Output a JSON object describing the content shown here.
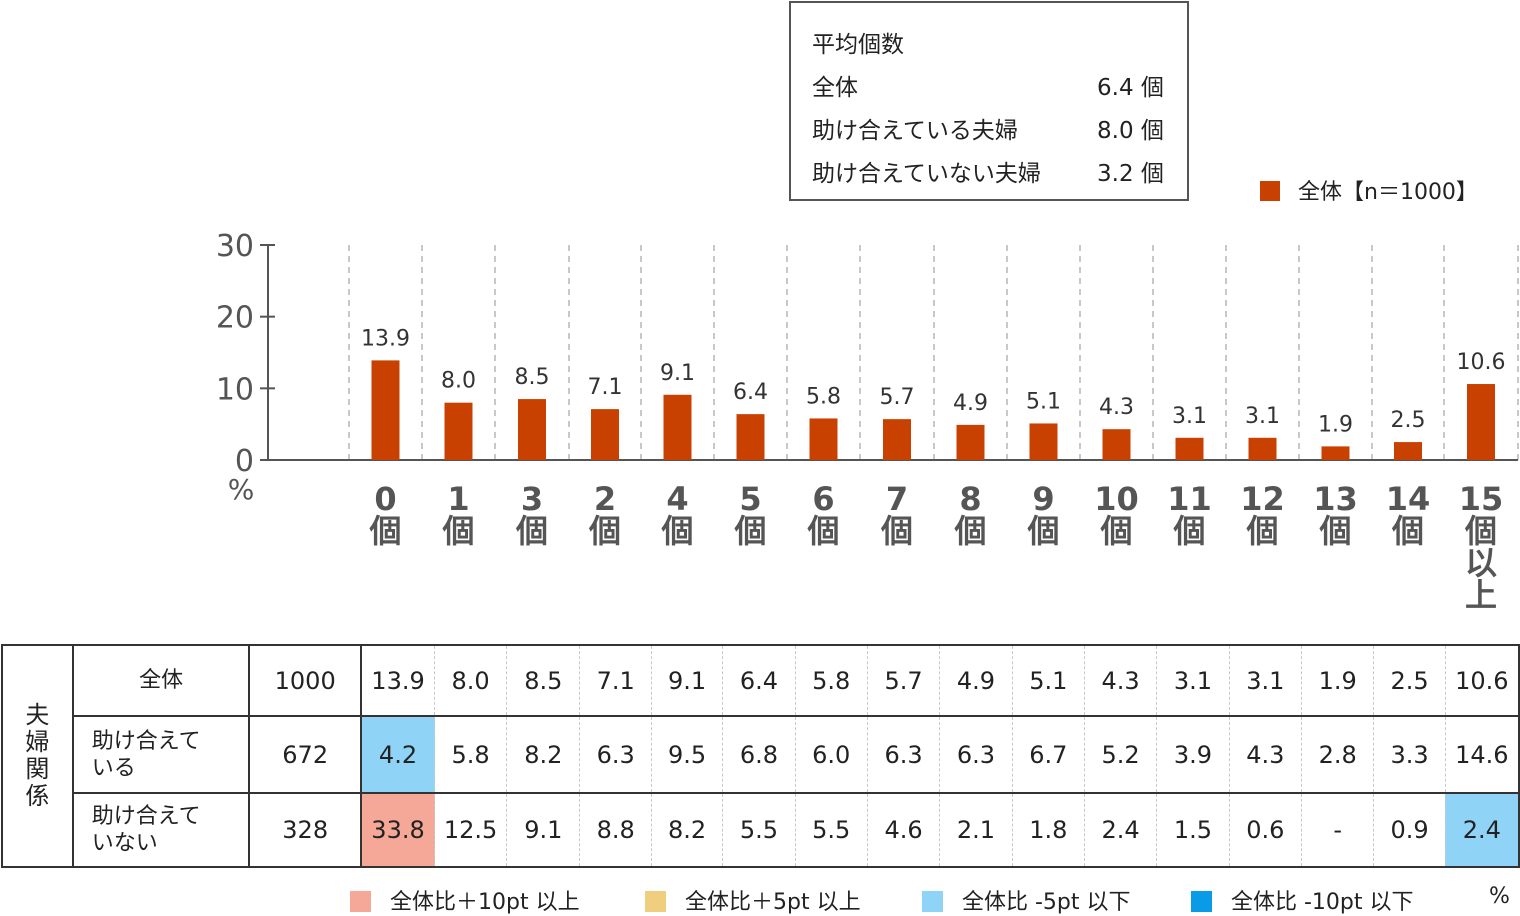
{
  "avg_box": {
    "title": "平均個数",
    "rows": [
      {
        "label": "全体",
        "value": "6.4 個"
      },
      {
        "label": "助け合えている夫婦",
        "value": "8.0 個"
      },
      {
        "label": "助け合えていない夫婦",
        "value": "3.2 個"
      }
    ]
  },
  "chart_data": {
    "type": "bar",
    "categories": [
      "0個",
      "1個",
      "3個",
      "2個",
      "4個",
      "5個",
      "6個",
      "7個",
      "8個",
      "9個",
      "10個",
      "11個",
      "12個",
      "13個",
      "14個",
      "15個以上"
    ],
    "category_labels": [
      [
        "0",
        "個"
      ],
      [
        "1",
        "個"
      ],
      [
        "3",
        "個"
      ],
      [
        "2",
        "個"
      ],
      [
        "4",
        "個"
      ],
      [
        "5",
        "個"
      ],
      [
        "6",
        "個"
      ],
      [
        "7",
        "個"
      ],
      [
        "8",
        "個"
      ],
      [
        "9",
        "個"
      ],
      [
        "10",
        "個"
      ],
      [
        "11",
        "個"
      ],
      [
        "12",
        "個"
      ],
      [
        "13",
        "個"
      ],
      [
        "14",
        "個"
      ],
      [
        "15",
        "個",
        "以",
        "上"
      ]
    ],
    "series": [
      {
        "name": "全体【n＝1000】",
        "values": [
          13.9,
          8.0,
          8.5,
          7.1,
          9.1,
          6.4,
          5.8,
          5.7,
          4.9,
          5.1,
          4.3,
          3.1,
          3.1,
          1.9,
          2.5,
          10.6
        ],
        "color": "#c94100"
      }
    ],
    "value_labels": [
      "13.9",
      "8.0",
      "8.5",
      "7.1",
      "9.1",
      "6.4",
      "5.8",
      "5.7",
      "4.9",
      "5.1",
      "4.3",
      "3.1",
      "3.1",
      "1.9",
      "2.5",
      "10.6"
    ],
    "ylim": [
      0,
      30
    ],
    "yticks": [
      "0",
      "10",
      "20",
      "30"
    ],
    "ylabel": "%",
    "grid": "vertical dashed",
    "legend": "top-right"
  },
  "table": {
    "group_label": "夫婦関係",
    "rows": [
      {
        "label": "全体",
        "n": "1000",
        "values": [
          "13.9",
          "8.0",
          "8.5",
          "7.1",
          "9.1",
          "6.4",
          "5.8",
          "5.7",
          "4.9",
          "5.1",
          "4.3",
          "3.1",
          "3.1",
          "1.9",
          "2.5",
          "10.6"
        ],
        "highlight": [
          "",
          "",
          "",
          "",
          "",
          "",
          "",
          "",
          "",
          "",
          "",
          "",
          "",
          "",
          "",
          ""
        ]
      },
      {
        "label": "助け合えている",
        "n": "672",
        "values": [
          "4.2",
          "5.8",
          "8.2",
          "6.3",
          "9.5",
          "6.8",
          "6.0",
          "6.3",
          "6.3",
          "6.7",
          "5.2",
          "3.9",
          "4.3",
          "2.8",
          "3.3",
          "14.6"
        ],
        "highlight": [
          "#8fd4f7",
          "",
          "",
          "",
          "",
          "",
          "",
          "",
          "",
          "",
          "",
          "",
          "",
          "",
          "",
          ""
        ]
      },
      {
        "label": "助け合えていない",
        "n": "328",
        "values": [
          "33.8",
          "12.5",
          "9.1",
          "8.8",
          "8.2",
          "5.5",
          "5.5",
          "4.6",
          "2.1",
          "1.8",
          "2.4",
          "1.5",
          "0.6",
          "-",
          "0.9",
          "2.4"
        ],
        "highlight": [
          "#f6a898",
          "",
          "",
          "",
          "",
          "",
          "",
          "",
          "",
          "",
          "",
          "",
          "",
          "",
          "",
          "#8fd4f7"
        ]
      }
    ]
  },
  "legend_bottom": [
    {
      "label": "全体比＋10pt 以上",
      "color": "#f6a898"
    },
    {
      "label": "全体比＋5pt 以上",
      "color": "#efcf7e"
    },
    {
      "label": "全体比 -5pt 以下",
      "color": "#8fd4f7"
    },
    {
      "label": "全体比 -10pt 以下",
      "color": "#0a9be8"
    }
  ],
  "unit_label": "%"
}
